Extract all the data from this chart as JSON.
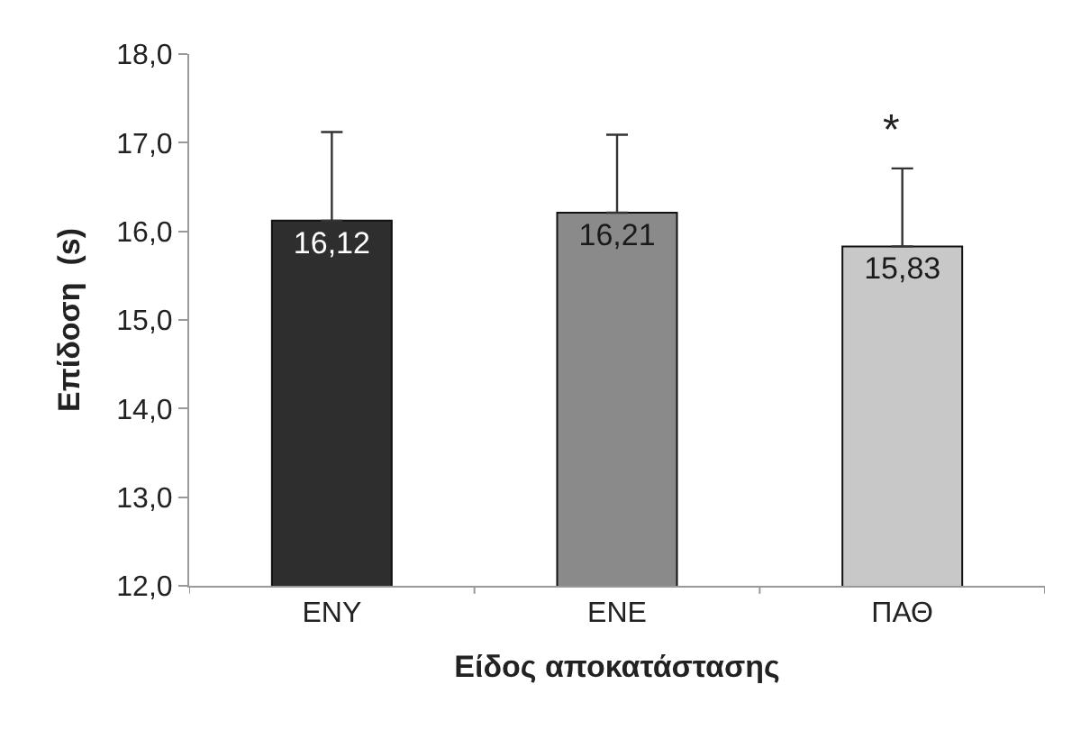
{
  "chart_data": {
    "type": "bar",
    "xlabel": "Είδος αποκατάστασης",
    "ylabel": "Επίδοση  (s)",
    "categories": [
      "ΕΝΥ",
      "ΕΝΕ",
      "ΠΑΘ"
    ],
    "values": [
      16.12,
      16.21,
      15.83
    ],
    "colors": [
      "#2e2e2e",
      "#8a8a8a",
      "#c8c8c8"
    ],
    "value_labels": [
      "16,12",
      "16,21",
      "15,83"
    ],
    "errors": [
      [
        16.12,
        17.12
      ],
      [
        16.21,
        17.09
      ],
      [
        15.83,
        16.71
      ]
    ],
    "ylim": [
      12,
      18
    ],
    "yticks": [
      {
        "value": 12,
        "label": "12,0"
      },
      {
        "value": 13,
        "label": "13,0"
      },
      {
        "value": 14,
        "label": "14,0"
      },
      {
        "value": 15,
        "label": "15,0"
      },
      {
        "value": 16,
        "label": "16,0"
      },
      {
        "value": 17,
        "label": "17,0"
      },
      {
        "value": 18,
        "label": "18,0"
      }
    ],
    "annotations": [
      "*"
    ]
  }
}
